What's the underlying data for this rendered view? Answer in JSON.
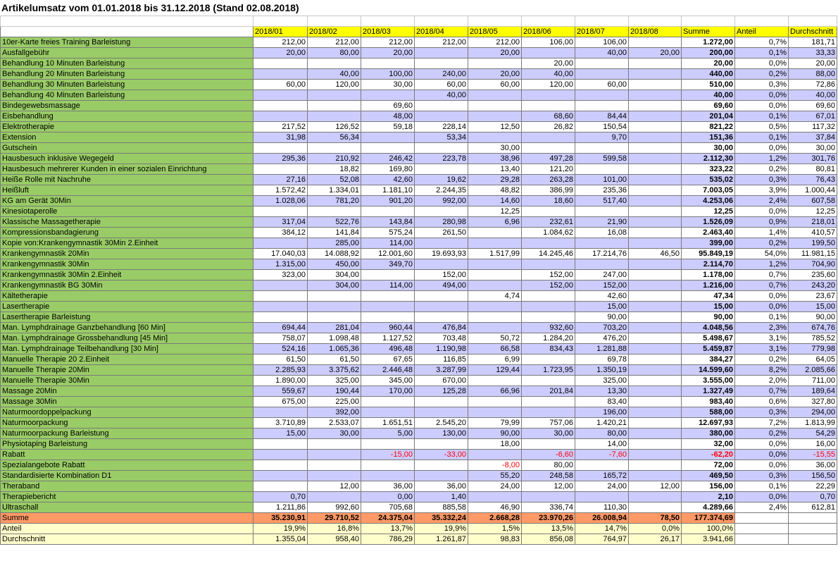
{
  "title": "Artikelumsatz  vom 01.01.2018 bis 31.12.2018 (Stand 02.08.2018)",
  "columns": [
    "",
    "2018/01",
    "2018/02",
    "2018/03",
    "2018/04",
    "2018/05",
    "2018/06",
    "2018/07",
    "2018/08",
    "Summe",
    "Anteil",
    "Durchschnitt"
  ],
  "rows": [
    [
      "10er-Karte freies Training Barleistung",
      "212,00",
      "212,00",
      "212,00",
      "212,00",
      "212,00",
      "106,00",
      "106,00",
      "",
      "1.272,00",
      "0,7%",
      "181,71"
    ],
    [
      "Ausfallgebühr",
      "20,00",
      "80,00",
      "20,00",
      "",
      "20,00",
      "",
      "40,00",
      "20,00",
      "200,00",
      "0,1%",
      "33,33"
    ],
    [
      "Behandlung 10 Minuten Barleistung",
      "",
      "",
      "",
      "",
      "",
      "20,00",
      "",
      "",
      "20,00",
      "0,0%",
      "20,00"
    ],
    [
      "Behandlung 20 Minuten Barleistung",
      "",
      "40,00",
      "100,00",
      "240,00",
      "20,00",
      "40,00",
      "",
      "",
      "440,00",
      "0,2%",
      "88,00"
    ],
    [
      "Behandlung 30 Minuten Barleistung",
      "60,00",
      "120,00",
      "30,00",
      "60,00",
      "60,00",
      "120,00",
      "60,00",
      "",
      "510,00",
      "0,3%",
      "72,86"
    ],
    [
      "Behandlung 40 Minuten Barleistung",
      "",
      "",
      "",
      "40,00",
      "",
      "",
      "",
      "",
      "40,00",
      "0,0%",
      "40,00"
    ],
    [
      "Bindegewebsmassage",
      "",
      "",
      "69,60",
      "",
      "",
      "",
      "",
      "",
      "69,60",
      "0,0%",
      "69,60"
    ],
    [
      "Eisbehandlung",
      "",
      "",
      "48,00",
      "",
      "",
      "68,60",
      "84,44",
      "",
      "201,04",
      "0,1%",
      "67,01"
    ],
    [
      "Elektrotherapie",
      "217,52",
      "126,52",
      "59,18",
      "228,14",
      "12,50",
      "26,82",
      "150,54",
      "",
      "821,22",
      "0,5%",
      "117,32"
    ],
    [
      "Extension",
      "31,98",
      "56,34",
      "",
      "53,34",
      "",
      "",
      "9,70",
      "",
      "151,36",
      "0,1%",
      "37,84"
    ],
    [
      "Gutschein",
      "",
      "",
      "",
      "",
      "30,00",
      "",
      "",
      "",
      "30,00",
      "0,0%",
      "30,00"
    ],
    [
      "Hausbesuch inklusive Wegegeld",
      "295,36",
      "210,92",
      "246,42",
      "223,78",
      "38,96",
      "497,28",
      "599,58",
      "",
      "2.112,30",
      "1,2%",
      "301,76"
    ],
    [
      "Hausbesuch mehrerer Kunden in einer sozialen Einrichtung",
      "",
      "18,82",
      "169,80",
      "",
      "13,40",
      "121,20",
      "",
      "",
      "323,22",
      "0,2%",
      "80,81"
    ],
    [
      "Heiße Rolle mit Nachruhe",
      "27,16",
      "52,08",
      "42,60",
      "19,62",
      "29,28",
      "263,28",
      "101,00",
      "",
      "535,02",
      "0,3%",
      "76,43"
    ],
    [
      "Heißluft",
      "1.572,42",
      "1.334,01",
      "1.181,10",
      "2.244,35",
      "48,82",
      "386,99",
      "235,36",
      "",
      "7.003,05",
      "3,9%",
      "1.000,44"
    ],
    [
      "KG am Gerät 30Min",
      "1.028,06",
      "781,20",
      "901,20",
      "992,00",
      "14,60",
      "18,60",
      "517,40",
      "",
      "4.253,06",
      "2,4%",
      "607,58"
    ],
    [
      "Kinesiotaperolle",
      "",
      "",
      "",
      "",
      "12,25",
      "",
      "",
      "",
      "12,25",
      "0,0%",
      "12,25"
    ],
    [
      "Klassische Massagetherapie",
      "317,04",
      "522,76",
      "143,84",
      "280,98",
      "6,96",
      "232,61",
      "21,90",
      "",
      "1.526,09",
      "0,9%",
      "218,01"
    ],
    [
      "Kompressionsbandagierung",
      "384,12",
      "141,84",
      "575,24",
      "261,50",
      "",
      "1.084,62",
      "16,08",
      "",
      "2.463,40",
      "1,4%",
      "410,57"
    ],
    [
      "Kopie von:Krankengymnastik 30Min 2.Einheit",
      "",
      "285,00",
      "114,00",
      "",
      "",
      "",
      "",
      "",
      "399,00",
      "0,2%",
      "199,50"
    ],
    [
      "Krankengymnastik 20Min",
      "17.040,03",
      "14.088,92",
      "12.001,60",
      "19.693,93",
      "1.517,99",
      "14.245,46",
      "17.214,76",
      "46,50",
      "95.849,19",
      "54,0%",
      "11.981,15"
    ],
    [
      "Krankengymnastik 30Min",
      "1.315,00",
      "450,00",
      "349,70",
      "",
      "",
      "",
      "",
      "",
      "2.114,70",
      "1,2%",
      "704,90"
    ],
    [
      "Krankengymnastik 30Min 2.Einheit",
      "323,00",
      "304,00",
      "",
      "152,00",
      "",
      "152,00",
      "247,00",
      "",
      "1.178,00",
      "0,7%",
      "235,60"
    ],
    [
      "Krankengymnastik BG 30Min",
      "",
      "304,00",
      "114,00",
      "494,00",
      "",
      "152,00",
      "152,00",
      "",
      "1.216,00",
      "0,7%",
      "243,20"
    ],
    [
      "Kältetherapie",
      "",
      "",
      "",
      "",
      "4,74",
      "",
      "42,60",
      "",
      "47,34",
      "0,0%",
      "23,67"
    ],
    [
      "Lasertherapie",
      "",
      "",
      "",
      "",
      "",
      "",
      "15,00",
      "",
      "15,00",
      "0,0%",
      "15,00"
    ],
    [
      "Lasertherapie Barleistung",
      "",
      "",
      "",
      "",
      "",
      "",
      "90,00",
      "",
      "90,00",
      "0,1%",
      "90,00"
    ],
    [
      "Man. Lymphdrainage Ganzbehandlung [60 Min]",
      "694,44",
      "281,04",
      "960,44",
      "476,84",
      "",
      "932,60",
      "703,20",
      "",
      "4.048,56",
      "2,3%",
      "674,76"
    ],
    [
      "Man. Lymphdrainage Grossbehandlung [45 Min]",
      "758,07",
      "1.098,48",
      "1.127,52",
      "703,48",
      "50,72",
      "1.284,20",
      "476,20",
      "",
      "5.498,67",
      "3,1%",
      "785,52"
    ],
    [
      "Man. Lymphdrainage Teilbehandlung [30 Min]",
      "524,16",
      "1.065,36",
      "496,48",
      "1.190,98",
      "66,58",
      "834,43",
      "1.281,88",
      "",
      "5.459,87",
      "3,1%",
      "779,98"
    ],
    [
      "Manuelle Therapie 20 2.Einheit",
      "61,50",
      "61,50",
      "67,65",
      "116,85",
      "6,99",
      "",
      "69,78",
      "",
      "384,27",
      "0,2%",
      "64,05"
    ],
    [
      "Manuelle Therapie 20Min",
      "2.285,93",
      "3.375,62",
      "2.446,48",
      "3.287,99",
      "129,44",
      "1.723,95",
      "1.350,19",
      "",
      "14.599,60",
      "8,2%",
      "2.085,66"
    ],
    [
      "Manuelle Therapie 30Min",
      "1.890,00",
      "325,00",
      "345,00",
      "670,00",
      "",
      "",
      "325,00",
      "",
      "3.555,00",
      "2,0%",
      "711,00"
    ],
    [
      "Massage 20Min",
      "559,67",
      "190,44",
      "170,00",
      "125,28",
      "66,96",
      "201,84",
      "13,30",
      "",
      "1.327,49",
      "0,7%",
      "189,64"
    ],
    [
      "Massage 30Min",
      "675,00",
      "225,00",
      "",
      "",
      "",
      "",
      "83,40",
      "",
      "983,40",
      "0,6%",
      "327,80"
    ],
    [
      "Naturmoordoppelpackung",
      "",
      "392,00",
      "",
      "",
      "",
      "",
      "196,00",
      "",
      "588,00",
      "0,3%",
      "294,00"
    ],
    [
      "Naturmoorpackung",
      "3.710,89",
      "2.533,07",
      "1.651,51",
      "2.545,20",
      "79,99",
      "757,06",
      "1.420,21",
      "",
      "12.697,93",
      "7,2%",
      "1.813,99"
    ],
    [
      "Naturmoorpackung Barleistung",
      "15,00",
      "30,00",
      "5,00",
      "130,00",
      "90,00",
      "30,00",
      "80,00",
      "",
      "380,00",
      "0,2%",
      "54,29"
    ],
    [
      "Physiotaping Barleistung",
      "",
      "",
      "",
      "",
      "18,00",
      "",
      "14,00",
      "",
      "32,00",
      "0,0%",
      "16,00"
    ],
    [
      "Rabatt",
      "",
      "",
      "-15,00",
      "-33,00",
      "",
      "-6,60",
      "-7,60",
      "",
      "-62,20",
      "0,0%",
      "-15,55"
    ],
    [
      "Spezialangebote Rabatt",
      "",
      "",
      "",
      "",
      "-8,00",
      "80,00",
      "",
      "",
      "72,00",
      "0,0%",
      "36,00"
    ],
    [
      "Standardisierte Kombination D1",
      "",
      "",
      "",
      "",
      "55,20",
      "248,58",
      "165,72",
      "",
      "469,50",
      "0,3%",
      "156,50"
    ],
    [
      "Theraband",
      "",
      "12,00",
      "36,00",
      "36,00",
      "24,00",
      "12,00",
      "24,00",
      "12,00",
      "156,00",
      "0,1%",
      "22,29"
    ],
    [
      "Therapiebericht",
      "0,70",
      "",
      "0,00",
      "1,40",
      "",
      "",
      "",
      "",
      "2,10",
      "0,0%",
      "0,70"
    ],
    [
      "Ultraschall",
      "1.211,86",
      "992,60",
      "705,68",
      "885,58",
      "46,90",
      "336,74",
      "110,30",
      "",
      "4.289,66",
      "2,4%",
      "612,81"
    ]
  ],
  "total": [
    "Summe",
    "35.230,91",
    "29.710,52",
    "24.375,04",
    "35.332,24",
    "2.668,28",
    "23.970,26",
    "26.008,94",
    "78,50",
    "177.374,69",
    "",
    ""
  ],
  "share": [
    "Anteil",
    "19,9%",
    "16,8%",
    "13,7%",
    "19,9%",
    "1,5%",
    "13,5%",
    "14,7%",
    "0,0%",
    "100,0%",
    "",
    ""
  ],
  "average": [
    "Durchschnitt",
    "1.355,04",
    "958,40",
    "786,29",
    "1.261,87",
    "98,83",
    "856,08",
    "764,97",
    "26,17",
    "3.941,66",
    "",
    ""
  ],
  "colors": {
    "header": "#ffff00",
    "name_cell": "#99cc66",
    "stripe": "#ccccff",
    "total": "#ff9966",
    "footer": "#ffffcc",
    "negative": "#ff0000"
  }
}
